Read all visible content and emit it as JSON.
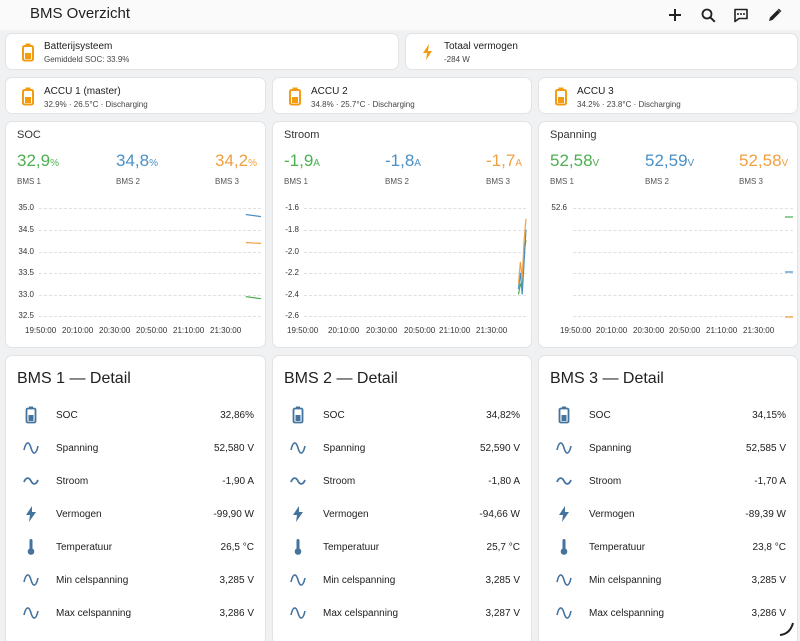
{
  "header": {
    "title": "BMS Overzicht"
  },
  "colors": {
    "accent": "#f39c12",
    "bms1": "#4caf50",
    "bms2": "#4a90c6",
    "bms3": "#f0a040",
    "icon": "#44739e"
  },
  "summary": {
    "system": {
      "name": "Batterijsysteem",
      "sub": "Gemiddeld SOC: 33.9%"
    },
    "power": {
      "name": "Totaal vermogen",
      "sub": "-284 W"
    }
  },
  "accus": [
    {
      "name": "ACCU 1 (master)",
      "sub": "32.9% · 26.5°C · Discharging"
    },
    {
      "name": "ACCU 2",
      "sub": "34.8% · 25.7°C · Discharging"
    },
    {
      "name": "ACCU 3",
      "sub": "34.2% · 23.8°C · Discharging"
    }
  ],
  "graphs": [
    {
      "title": "SOC",
      "readings": [
        {
          "value": "32,9",
          "unit": "%",
          "label": "BMS 1"
        },
        {
          "value": "34,8",
          "unit": "%",
          "label": "BMS 2"
        },
        {
          "value": "34,2",
          "unit": "%",
          "label": "BMS 3"
        }
      ],
      "yticks": [
        "35.0",
        "34.5",
        "34.0",
        "33.5",
        "33.0",
        "32.5"
      ],
      "xticks": [
        "19:50:00",
        "20:10:00",
        "20:30:00",
        "20:50:00",
        "21:10:00",
        "21:30:00"
      ]
    },
    {
      "title": "Stroom",
      "readings": [
        {
          "value": "-1,9",
          "unit": "A",
          "label": "BMS 1"
        },
        {
          "value": "-1,8",
          "unit": "A",
          "label": "BMS 2"
        },
        {
          "value": "-1,7",
          "unit": "A",
          "label": "BMS 3"
        }
      ],
      "yticks": [
        "-1.6",
        "-1.8",
        "-2.0",
        "-2.2",
        "-2.4",
        "-2.6"
      ],
      "xticks": [
        "19:50:00",
        "20:10:00",
        "20:30:00",
        "20:50:00",
        "21:10:00",
        "21:30:00"
      ]
    },
    {
      "title": "Spanning",
      "readings": [
        {
          "value": "52,58",
          "unit": "V",
          "label": "BMS 1"
        },
        {
          "value": "52,59",
          "unit": "V",
          "label": "BMS 2"
        },
        {
          "value": "52,58",
          "unit": "V",
          "label": "BMS 3"
        }
      ],
      "yticks": [
        "52.6"
      ],
      "xticks": [
        "19:50:00",
        "20:10:00",
        "20:30:00",
        "20:50:00",
        "21:10:00",
        "21:30:00"
      ]
    }
  ],
  "chart_data": [
    {
      "type": "line",
      "title": "SOC",
      "ylim": [
        32.5,
        35.0
      ],
      "series": [
        {
          "name": "BMS 1",
          "x": [
            "21:37",
            "21:45"
          ],
          "values": [
            32.95,
            32.9
          ]
        },
        {
          "name": "BMS 2",
          "x": [
            "21:37",
            "21:45"
          ],
          "values": [
            34.85,
            34.8
          ]
        },
        {
          "name": "BMS 3",
          "x": [
            "21:37",
            "21:45"
          ],
          "values": [
            34.2,
            34.18
          ]
        }
      ]
    },
    {
      "type": "line",
      "title": "Stroom",
      "ylim": [
        -2.6,
        -1.6
      ],
      "series": [
        {
          "name": "BMS 1",
          "x": [
            "21:42",
            "21:43",
            "21:44",
            "21:45",
            "21:46"
          ],
          "values": [
            -2.4,
            -2.3,
            -2.35,
            -2.0,
            -1.9
          ]
        },
        {
          "name": "BMS 2",
          "x": [
            "21:42",
            "21:43",
            "21:44",
            "21:45",
            "21:46"
          ],
          "values": [
            -2.35,
            -2.2,
            -2.4,
            -2.1,
            -1.8
          ]
        },
        {
          "name": "BMS 3",
          "x": [
            "21:42",
            "21:43",
            "21:44",
            "21:45",
            "21:46"
          ],
          "values": [
            -2.3,
            -2.1,
            -2.25,
            -1.9,
            -1.7
          ]
        }
      ]
    },
    {
      "type": "line",
      "title": "Spanning",
      "series": [
        {
          "name": "BMS 1",
          "values": [
            52.58
          ]
        },
        {
          "name": "BMS 2",
          "values": [
            52.59
          ]
        },
        {
          "name": "BMS 3",
          "values": [
            52.58
          ]
        }
      ]
    }
  ],
  "details": [
    {
      "title": "BMS 1 — Detail",
      "rows": [
        {
          "icon": "battery-icon",
          "label": "SOC",
          "value": "32,86%"
        },
        {
          "icon": "sine-wave-icon",
          "label": "Spanning",
          "value": "52,580 V"
        },
        {
          "icon": "current-ac-icon",
          "label": "Stroom",
          "value": "-1,90 A"
        },
        {
          "icon": "flash-icon",
          "label": "Vermogen",
          "value": "-99,90 W"
        },
        {
          "icon": "thermometer-icon",
          "label": "Temperatuur",
          "value": "26,5 °C"
        },
        {
          "icon": "sine-wave-icon",
          "label": "Min celspanning",
          "value": "3,285 V"
        },
        {
          "icon": "sine-wave-icon",
          "label": "Max celspanning",
          "value": "3,286 V"
        }
      ]
    },
    {
      "title": "BMS 2 — Detail",
      "rows": [
        {
          "icon": "battery-icon",
          "label": "SOC",
          "value": "34,82%"
        },
        {
          "icon": "sine-wave-icon",
          "label": "Spanning",
          "value": "52,590 V"
        },
        {
          "icon": "current-ac-icon",
          "label": "Stroom",
          "value": "-1,80 A"
        },
        {
          "icon": "flash-icon",
          "label": "Vermogen",
          "value": "-94,66 W"
        },
        {
          "icon": "thermometer-icon",
          "label": "Temperatuur",
          "value": "25,7 °C"
        },
        {
          "icon": "sine-wave-icon",
          "label": "Min celspanning",
          "value": "3,285 V"
        },
        {
          "icon": "sine-wave-icon",
          "label": "Max celspanning",
          "value": "3,287 V"
        }
      ]
    },
    {
      "title": "BMS 3 — Detail",
      "rows": [
        {
          "icon": "battery-icon",
          "label": "SOC",
          "value": "34,15%"
        },
        {
          "icon": "sine-wave-icon",
          "label": "Spanning",
          "value": "52,585 V"
        },
        {
          "icon": "current-ac-icon",
          "label": "Stroom",
          "value": "-1,70 A"
        },
        {
          "icon": "flash-icon",
          "label": "Vermogen",
          "value": "-89,39 W"
        },
        {
          "icon": "thermometer-icon",
          "label": "Temperatuur",
          "value": "23,8 °C"
        },
        {
          "icon": "sine-wave-icon",
          "label": "Min celspanning",
          "value": "3,285 V"
        },
        {
          "icon": "sine-wave-icon",
          "label": "Max celspanning",
          "value": "3,286 V"
        }
      ]
    }
  ]
}
